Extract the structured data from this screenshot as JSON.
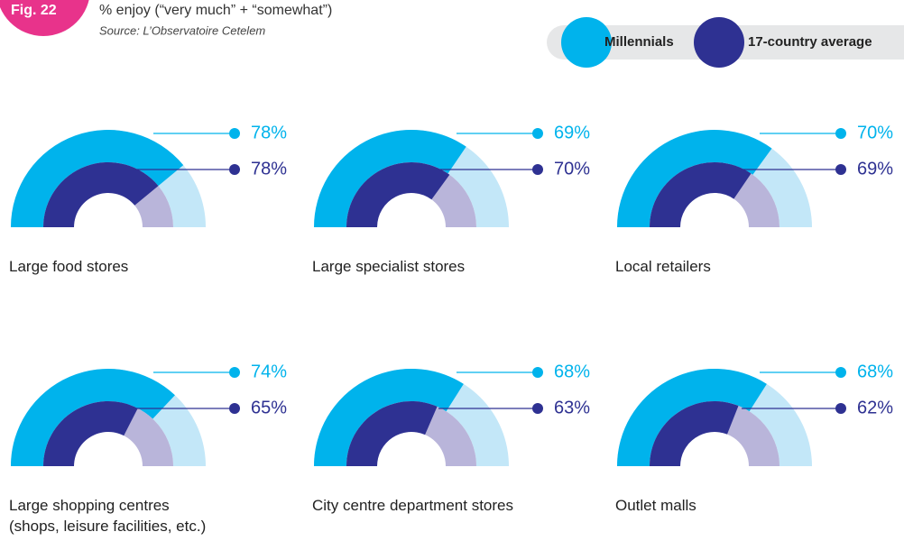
{
  "chart_data": {
    "type": "gauge",
    "figure": "Fig. 22",
    "title": "% enjoy (“very much” + “somewhat”)",
    "subtitle": "Source: L’Observatoire Cetelem",
    "categories": [
      "Large food stores",
      "Large specialist stores",
      "Local retailers",
      "Large shopping centres\n(shops, leisure facilities, etc.)",
      "City centre department stores",
      "Outlet malls"
    ],
    "ylim": [
      0,
      100
    ],
    "series": [
      {
        "name": "Millennials",
        "color": "#00b3ec",
        "track_color": "#c3e7f8",
        "values": [
          78,
          69,
          70,
          74,
          68,
          68
        ],
        "value_labels": [
          "78%",
          "69%",
          "70%",
          "74%",
          "68%",
          "68%"
        ]
      },
      {
        "name": "17-country average",
        "color": "#2e3192",
        "track_color": "#b9b5da",
        "values": [
          78,
          70,
          69,
          65,
          63,
          62
        ],
        "value_labels": [
          "78%",
          "70%",
          "69%",
          "65%",
          "63%",
          "62%"
        ]
      }
    ]
  }
}
